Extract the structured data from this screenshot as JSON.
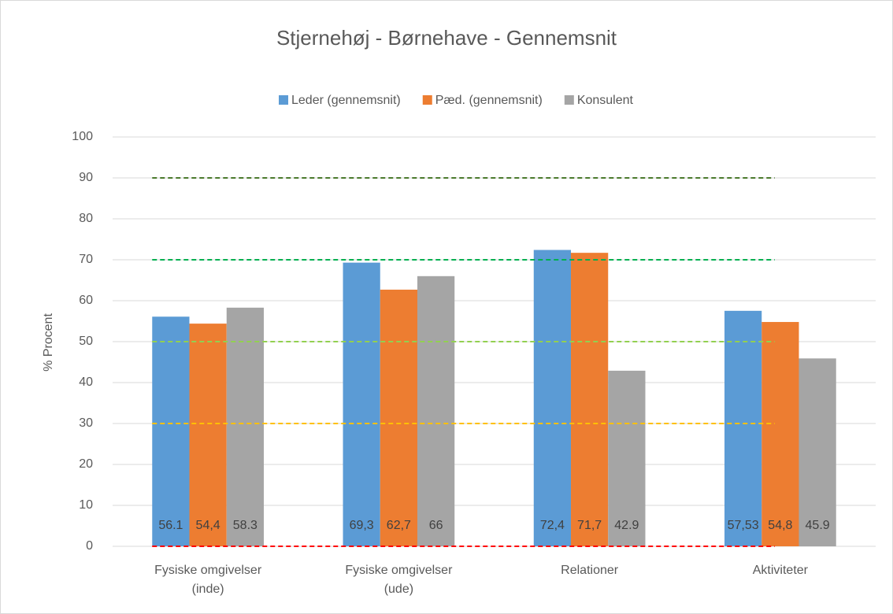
{
  "chart_data": {
    "type": "bar",
    "title": "Stjernehøj - Børnehave - Gennemsnit",
    "y_label": "% Procent",
    "categories": [
      "Fysiske omgivelser (inde)",
      "Fysiske omgivelser (ude)",
      "Relationer",
      "Aktiviteter"
    ],
    "series": [
      {
        "name": "Leder (gennemsnit)",
        "color": "#5b9bd5",
        "values": [
          56.1,
          69.3,
          72.4,
          57.53
        ],
        "value_labels": [
          "56.1",
          "69,3",
          "72,4",
          "57,53"
        ]
      },
      {
        "name": "Pæd. (gennemsnit)",
        "color": "#ed7d31",
        "values": [
          54.4,
          62.7,
          71.7,
          54.8
        ],
        "value_labels": [
          "54,4",
          "62,7",
          "71,7",
          "54,8"
        ]
      },
      {
        "name": "Konsulent",
        "color": "#a5a5a5",
        "values": [
          58.3,
          66,
          42.9,
          45.9
        ],
        "value_labels": [
          "58.3",
          "66",
          "42.9",
          "45.9"
        ]
      }
    ],
    "reference_lines": [
      {
        "value": 90,
        "color": "#4a7a2c"
      },
      {
        "value": 70,
        "color": "#00b050"
      },
      {
        "value": 50,
        "color": "#92d050"
      },
      {
        "value": 30,
        "color": "#ffc000"
      },
      {
        "value": 0,
        "color": "#ff0000"
      }
    ],
    "ylim": [
      0,
      100
    ],
    "yticks": [
      0,
      10,
      20,
      30,
      40,
      50,
      60,
      70,
      80,
      90,
      100
    ],
    "grid": true,
    "legend": "top"
  }
}
